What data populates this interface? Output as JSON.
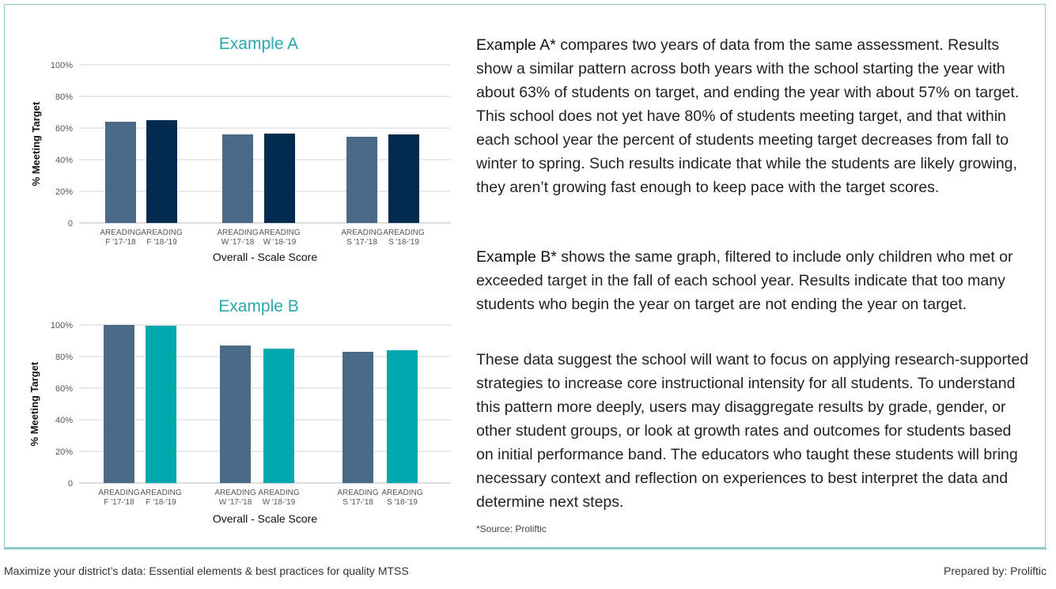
{
  "colors": {
    "accent": "#2aa7ad",
    "slate": "#4a6a88",
    "navy": "#032b4f",
    "teal": "#00a8ae"
  },
  "chart_data": [
    {
      "type": "bar",
      "title": "Example A",
      "xlabel": "Overall - Scale Score",
      "ylabel": "% Meeting Target",
      "ylim": [
        0,
        100
      ],
      "yticks": [
        "0",
        "20%",
        "40%",
        "60%",
        "80%",
        "100%"
      ],
      "grid": true,
      "bars": [
        {
          "label1": "AREADING",
          "label2": "F '17-'18",
          "value": 64,
          "color": "#4a6a88"
        },
        {
          "label1": "AREADING",
          "label2": "F '18-'19",
          "value": 65,
          "color": "#032b4f"
        },
        {
          "label1": "AREADING",
          "label2": "W '17-'18",
          "value": 56,
          "color": "#4a6a88"
        },
        {
          "label1": "AREADING",
          "label2": "W '18-'19",
          "value": 56.5,
          "color": "#032b4f"
        },
        {
          "label1": "AREADING",
          "label2": "S '17-'18",
          "value": 54.5,
          "color": "#4a6a88"
        },
        {
          "label1": "AREADING",
          "label2": "S '18-'19",
          "value": 56,
          "color": "#032b4f"
        }
      ]
    },
    {
      "type": "bar",
      "title": "Example B",
      "xlabel": "Overall - Scale Score",
      "ylabel": "% Meeting Target",
      "ylim": [
        0,
        100
      ],
      "yticks": [
        "0",
        "20%",
        "40%",
        "60%",
        "80%",
        "100%"
      ],
      "grid": true,
      "bars": [
        {
          "label1": "AREADING",
          "label2": "F '17-'18",
          "value": 100,
          "color": "#4a6a88"
        },
        {
          "label1": "AREADING",
          "label2": "F '18-'19",
          "value": 99.5,
          "color": "#00a8ae"
        },
        {
          "label1": "AREADING",
          "label2": "W '17-'18",
          "value": 87,
          "color": "#4a6a88"
        },
        {
          "label1": "AREADING",
          "label2": "W '18-'19",
          "value": 85,
          "color": "#00a8ae"
        },
        {
          "label1": "AREADING",
          "label2": "S '17-'18",
          "value": 83,
          "color": "#4a6a88"
        },
        {
          "label1": "AREADING",
          "label2": "S '18-'19",
          "value": 84,
          "color": "#00a8ae"
        }
      ]
    }
  ],
  "text": {
    "para_a_lead": "Example A*",
    "para_a_body": " compares two years of data from the same assessment. Results show a similar pattern across both years with the school starting the year with about 63% of students on target, and ending the year with about 57% on target. This school does not yet have 80% of students meeting target, and that within each school year the percent of students meeting target decreases from fall to winter to spring. Such results indicate that while the students are likely growing, they aren’t growing fast enough to keep pace with the target scores.",
    "para_b_lead": "Example B*",
    "para_b_body": " shows the same graph, filtered to include only children who met or exceeded target in the fall of each school year. Results indicate that too many students who begin the year on target are not ending the year on target.",
    "para_c": "These data suggest the school will want to focus on applying research-supported strategies to increase core instructional intensity for all students. To understand this pattern more deeply, users may disaggregate results by grade, gender, or other student groups, or look at growth rates and outcomes for students based on initial performance band. The educators who taught these students will bring necessary context and reflection on experiences to best interpret the data and determine next steps.",
    "source": "*Source: Proliftic"
  },
  "footer": {
    "left": "Maximize your district’s data: Essential elements & best practices for quality MTSS",
    "right": "Prepared by: Proliftic"
  }
}
